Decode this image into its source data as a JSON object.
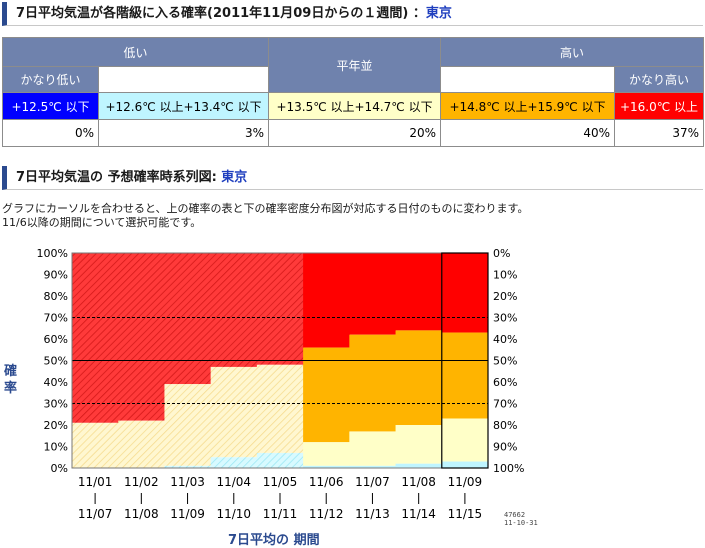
{
  "header1": {
    "title": "7日平均気温が各階級に入る確率(2011年11月09日からの１週間) ：",
    "city": "東京"
  },
  "table": {
    "groups": [
      "低い",
      "平年並",
      "高い"
    ],
    "sub_low": "かなり低い",
    "sub_high": "かなり高い",
    "ranges": [
      "+12.5℃ 以下",
      "+12.6℃ 以上+13.4℃ 以下",
      "+13.5℃ 以上+14.7℃ 以下",
      "+14.8℃ 以上+15.9℃ 以下",
      "+16.0℃ 以上"
    ],
    "values": [
      "0%",
      "3%",
      "20%",
      "40%",
      "37%"
    ]
  },
  "header2": {
    "title": "7日平均気温の 予想確率時系列図: ",
    "city": "東京"
  },
  "description": {
    "line1": "グラフにカーソルを合わせると、上の確率の表と下の確率密度分布図が対応する日付のものに変わります。",
    "line2": "11/6以降の期間について選択可能です。"
  },
  "axes": {
    "ylabel": "確率",
    "xlabel": "7日平均の 期間"
  },
  "code": {
    "line1": "47662",
    "line2": "11-10-31"
  },
  "colors": {
    "very_low": "#0000ff",
    "low": "#bff5ff",
    "normal": "#ffffc8",
    "high": "#ffb400",
    "very_high": "#ff0000",
    "header": "#6f82ad"
  },
  "chart_data": {
    "type": "area",
    "categories_start": [
      "11/01",
      "11/02",
      "11/03",
      "11/04",
      "11/05",
      "11/06",
      "11/07",
      "11/08",
      "11/09"
    ],
    "categories_end": [
      "11/07",
      "11/08",
      "11/09",
      "11/10",
      "11/11",
      "11/12",
      "11/13",
      "11/14",
      "11/15"
    ],
    "yticks": [
      "100%",
      "90%",
      "80%",
      "70%",
      "60%",
      "50%",
      "40%",
      "30%",
      "20%",
      "10%",
      "0%"
    ],
    "yticks_right": [
      "0%",
      "10%",
      "20%",
      "30%",
      "40%",
      "50%",
      "60%",
      "70%",
      "80%",
      "90%",
      "100%"
    ],
    "ylim": [
      0,
      100
    ],
    "reference_lines": [
      30,
      50,
      70
    ],
    "stacked_from_top": true,
    "observed_through_index": 4,
    "selected_index": 8,
    "series": [
      {
        "key": "very_high",
        "values": [
          79,
          78,
          61,
          53,
          52,
          44,
          38,
          36,
          37
        ]
      },
      {
        "key": "high",
        "values": [
          0,
          0,
          0,
          0,
          0,
          44,
          45,
          44,
          40
        ]
      },
      {
        "key": "normal",
        "values": [
          21,
          22,
          38,
          42,
          41,
          11,
          16,
          18,
          20
        ]
      },
      {
        "key": "low",
        "values": [
          0,
          0,
          1,
          5,
          7,
          1,
          1,
          2,
          3
        ]
      },
      {
        "key": "very_low",
        "values": [
          0,
          0,
          0,
          0,
          0,
          0,
          0,
          0,
          0
        ]
      }
    ]
  }
}
